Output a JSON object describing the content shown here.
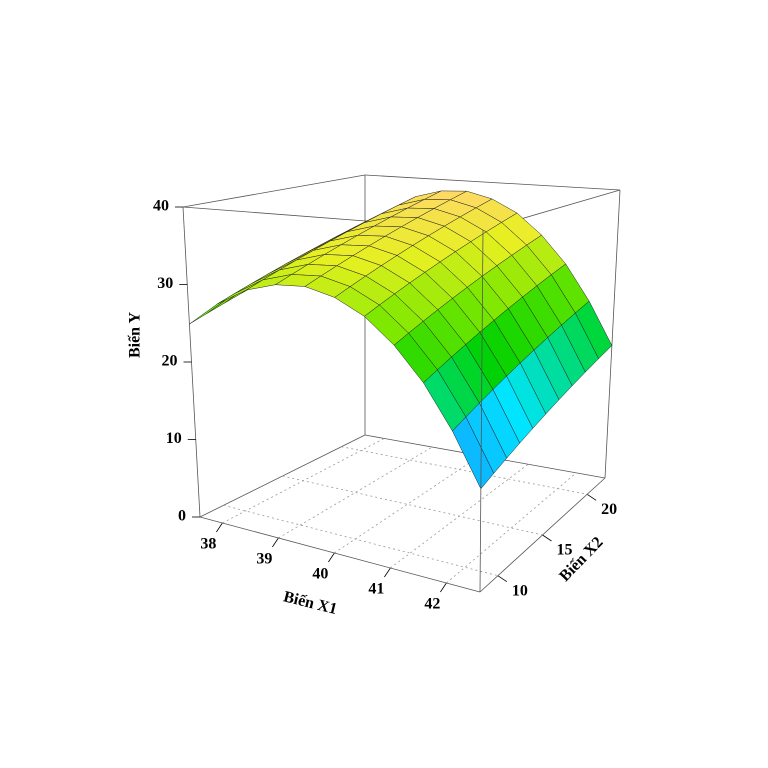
{
  "chart_data": {
    "type": "surface",
    "xlabel": "Biến X1",
    "ylabel": "Biến X2",
    "zlabel": "Biến Y",
    "xlim": [
      37.6,
      42.6
    ],
    "ylim": [
      8,
      22
    ],
    "zlim": [
      0,
      40
    ],
    "xticks": [
      38,
      39,
      40,
      41,
      42
    ],
    "yticks": [
      10,
      15,
      20
    ],
    "zticks": [
      0,
      10,
      20,
      30,
      40
    ],
    "x": [
      37.6,
      38.1,
      38.6,
      39.1,
      39.6,
      40.1,
      40.6,
      41.1,
      41.6,
      42.1,
      42.6
    ],
    "y": [
      8,
      9.4,
      10.8,
      12.2,
      13.6,
      15,
      16.4,
      17.8,
      19.2,
      20.6,
      22
    ],
    "z": [
      [
        24.9,
        25.6,
        26.3,
        27.0,
        27.7,
        28.4,
        29.1,
        29.8,
        30.5,
        31.2,
        31.9
      ],
      [
        28.0,
        28.7,
        29.4,
        30.1,
        30.8,
        31.5,
        32.2,
        32.9,
        33.6,
        34.3,
        35.0
      ],
      [
        30.2,
        30.9,
        31.6,
        32.3,
        33.0,
        33.7,
        34.4,
        35.1,
        35.8,
        36.5,
        37.2
      ],
      [
        31.3,
        32.0,
        32.7,
        33.4,
        34.1,
        34.8,
        35.5,
        36.2,
        36.9,
        37.6,
        38.3
      ],
      [
        31.5,
        32.2,
        32.9,
        33.6,
        34.3,
        35.0,
        35.7,
        36.4,
        37.1,
        37.8,
        38.5
      ],
      [
        30.6,
        31.3,
        32.0,
        32.7,
        33.4,
        34.1,
        34.8,
        35.5,
        36.2,
        36.9,
        37.6
      ],
      [
        28.8,
        29.5,
        30.2,
        30.9,
        31.6,
        32.3,
        33.0,
        33.7,
        34.4,
        35.1,
        35.8
      ],
      [
        25.9,
        26.6,
        27.3,
        28.0,
        28.7,
        29.4,
        30.1,
        30.8,
        31.5,
        32.2,
        32.9
      ],
      [
        22.1,
        22.8,
        23.5,
        24.2,
        24.9,
        25.6,
        26.3,
        27.0,
        27.7,
        28.4,
        29.1
      ],
      [
        17.2,
        17.9,
        18.6,
        19.3,
        20.0,
        20.7,
        21.4,
        22.1,
        22.8,
        23.5,
        24.2
      ],
      [
        11.4,
        12.1,
        12.8,
        13.5,
        14.2,
        14.9,
        15.6,
        16.3,
        17.0,
        17.7,
        18.4
      ]
    ],
    "colormap": [
      "#1e7bff",
      "#00e5ff",
      "#00d200",
      "#7ee800",
      "#e6f020",
      "#ffd966"
    ],
    "grid": true
  }
}
